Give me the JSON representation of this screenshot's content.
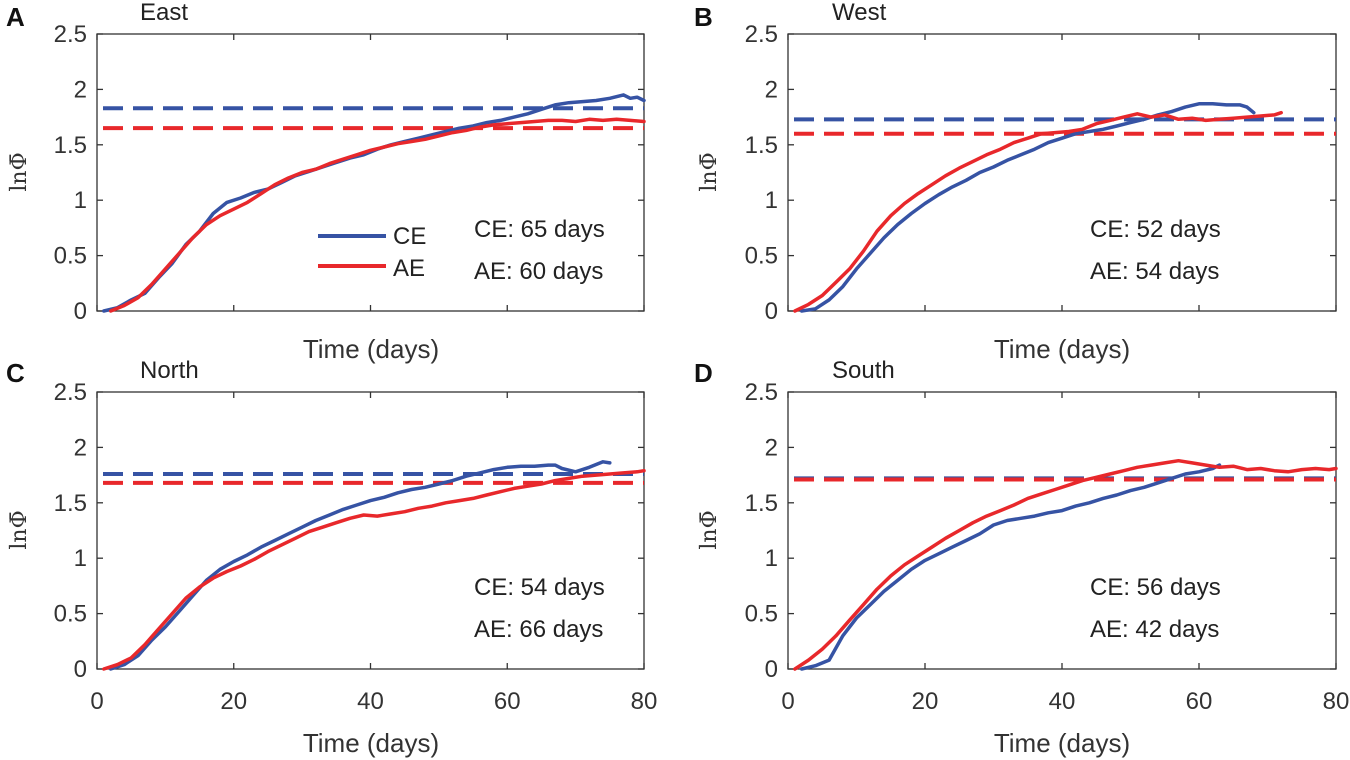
{
  "chart_data": [
    {
      "type": "line",
      "panel_label": "A",
      "title": "East",
      "xlabel": "Time (days)",
      "ylabel": "lnΦ̄",
      "xlim": [
        0,
        80
      ],
      "ylim": [
        0,
        2.5
      ],
      "xticks": [
        "0",
        "20",
        "40",
        "60",
        "80"
      ],
      "yticks": [
        "0",
        "0.5",
        "1",
        "1.5",
        "2",
        "2.5"
      ],
      "show_xtick_labels": false,
      "legend": [
        "CE",
        "AE"
      ],
      "annotations": [
        "CE: 65 days",
        "AE: 60 days"
      ],
      "series": [
        {
          "name": "CE",
          "color": "#3653a4",
          "x": [
            1,
            3,
            5,
            7,
            9,
            11,
            13,
            15,
            17,
            19,
            21,
            23,
            25,
            27,
            29,
            31,
            33,
            35,
            37,
            39,
            41,
            43,
            45,
            47,
            49,
            51,
            53,
            55,
            57,
            59,
            61,
            63,
            65,
            67,
            69,
            71,
            73,
            75,
            77,
            78,
            79,
            80
          ],
          "y": [
            0,
            0.03,
            0.1,
            0.16,
            0.3,
            0.43,
            0.6,
            0.72,
            0.88,
            0.98,
            1.02,
            1.07,
            1.1,
            1.16,
            1.22,
            1.26,
            1.3,
            1.34,
            1.38,
            1.41,
            1.46,
            1.5,
            1.53,
            1.56,
            1.59,
            1.62,
            1.65,
            1.67,
            1.7,
            1.72,
            1.75,
            1.78,
            1.82,
            1.86,
            1.88,
            1.89,
            1.9,
            1.92,
            1.95,
            1.92,
            1.93,
            1.9
          ]
        },
        {
          "name": "AE",
          "color": "#e8282b",
          "x": [
            2,
            4,
            6,
            8,
            10,
            12,
            14,
            16,
            18,
            20,
            22,
            24,
            26,
            28,
            30,
            32,
            34,
            36,
            38,
            40,
            42,
            44,
            46,
            48,
            50,
            52,
            54,
            56,
            58,
            60,
            62,
            64,
            66,
            68,
            70,
            72,
            74,
            76,
            78,
            80
          ],
          "y": [
            0,
            0.05,
            0.12,
            0.24,
            0.38,
            0.52,
            0.66,
            0.78,
            0.86,
            0.92,
            0.98,
            1.06,
            1.14,
            1.2,
            1.25,
            1.28,
            1.33,
            1.37,
            1.41,
            1.45,
            1.48,
            1.51,
            1.53,
            1.55,
            1.58,
            1.61,
            1.63,
            1.66,
            1.68,
            1.69,
            1.7,
            1.71,
            1.72,
            1.72,
            1.71,
            1.73,
            1.72,
            1.73,
            1.72,
            1.71
          ]
        }
      ],
      "reference_lines": [
        {
          "name": "CE plateau",
          "color": "#3653a4",
          "y": 1.83
        },
        {
          "name": "AE plateau",
          "color": "#e8282b",
          "y": 1.65
        }
      ]
    },
    {
      "type": "line",
      "panel_label": "B",
      "title": "West",
      "xlabel": "Time (days)",
      "ylabel": "lnΦ̄",
      "xlim": [
        0,
        80
      ],
      "ylim": [
        0,
        2.5
      ],
      "xticks": [
        "0",
        "20",
        "40",
        "60",
        "80"
      ],
      "yticks": [
        "0",
        "0.5",
        "1",
        "1.5",
        "2",
        "2.5"
      ],
      "show_xtick_labels": false,
      "legend": [],
      "annotations": [
        "CE: 52 days",
        "AE: 54 days"
      ],
      "series": [
        {
          "name": "CE",
          "color": "#3653a4",
          "x": [
            2,
            4,
            6,
            8,
            10,
            12,
            14,
            16,
            18,
            20,
            22,
            24,
            26,
            28,
            30,
            32,
            34,
            36,
            38,
            40,
            42,
            44,
            46,
            48,
            50,
            52,
            54,
            56,
            58,
            60,
            62,
            64,
            66,
            67,
            68
          ],
          "y": [
            0,
            0.02,
            0.1,
            0.22,
            0.38,
            0.52,
            0.66,
            0.78,
            0.88,
            0.97,
            1.05,
            1.12,
            1.18,
            1.25,
            1.3,
            1.36,
            1.41,
            1.46,
            1.52,
            1.56,
            1.6,
            1.62,
            1.64,
            1.67,
            1.7,
            1.73,
            1.77,
            1.8,
            1.84,
            1.87,
            1.87,
            1.86,
            1.86,
            1.84,
            1.79
          ]
        },
        {
          "name": "AE",
          "color": "#e8282b",
          "x": [
            1,
            3,
            5,
            7,
            9,
            11,
            13,
            15,
            17,
            19,
            21,
            23,
            25,
            27,
            29,
            31,
            33,
            35,
            37,
            39,
            41,
            43,
            45,
            47,
            49,
            51,
            53,
            55,
            57,
            59,
            61,
            63,
            65,
            67,
            69,
            71,
            72
          ],
          "y": [
            0,
            0.06,
            0.14,
            0.26,
            0.38,
            0.54,
            0.72,
            0.86,
            0.97,
            1.06,
            1.14,
            1.22,
            1.29,
            1.35,
            1.41,
            1.46,
            1.52,
            1.56,
            1.6,
            1.61,
            1.62,
            1.64,
            1.69,
            1.72,
            1.75,
            1.78,
            1.75,
            1.77,
            1.73,
            1.74,
            1.72,
            1.73,
            1.74,
            1.75,
            1.76,
            1.77,
            1.79
          ]
        }
      ],
      "reference_lines": [
        {
          "name": "CE plateau",
          "color": "#3653a4",
          "y": 1.73
        },
        {
          "name": "AE plateau",
          "color": "#e8282b",
          "y": 1.6
        }
      ]
    },
    {
      "type": "line",
      "panel_label": "C",
      "title": "North",
      "xlabel": "Time (days)",
      "ylabel": "lnΦ̄",
      "xlim": [
        0,
        80
      ],
      "ylim": [
        0,
        2.5
      ],
      "xticks": [
        "0",
        "20",
        "40",
        "60",
        "80"
      ],
      "yticks": [
        "0",
        "0.5",
        "1",
        "1.5",
        "2",
        "2.5"
      ],
      "show_xtick_labels": true,
      "legend": [],
      "annotations": [
        "CE: 54 days",
        "AE: 66 days"
      ],
      "series": [
        {
          "name": "CE",
          "color": "#3653a4",
          "x": [
            2,
            4,
            6,
            8,
            10,
            12,
            14,
            16,
            18,
            20,
            22,
            24,
            26,
            28,
            30,
            32,
            34,
            36,
            38,
            40,
            42,
            44,
            46,
            48,
            50,
            52,
            54,
            56,
            58,
            60,
            62,
            64,
            66,
            67,
            68,
            70,
            72,
            74,
            75
          ],
          "y": [
            0,
            0.04,
            0.12,
            0.26,
            0.38,
            0.52,
            0.66,
            0.8,
            0.9,
            0.97,
            1.03,
            1.1,
            1.16,
            1.22,
            1.28,
            1.34,
            1.39,
            1.44,
            1.48,
            1.52,
            1.55,
            1.59,
            1.62,
            1.64,
            1.67,
            1.7,
            1.74,
            1.77,
            1.8,
            1.82,
            1.83,
            1.83,
            1.84,
            1.84,
            1.81,
            1.78,
            1.82,
            1.87,
            1.86
          ]
        },
        {
          "name": "AE",
          "color": "#e8282b",
          "x": [
            1,
            3,
            5,
            7,
            9,
            11,
            13,
            15,
            17,
            19,
            21,
            23,
            25,
            27,
            29,
            31,
            33,
            35,
            37,
            39,
            41,
            43,
            45,
            47,
            49,
            51,
            53,
            55,
            57,
            59,
            61,
            63,
            65,
            67,
            69,
            71,
            73,
            75,
            77,
            79,
            80
          ],
          "y": [
            0,
            0.04,
            0.1,
            0.22,
            0.36,
            0.5,
            0.64,
            0.74,
            0.82,
            0.88,
            0.93,
            0.99,
            1.06,
            1.12,
            1.18,
            1.24,
            1.28,
            1.32,
            1.36,
            1.39,
            1.38,
            1.4,
            1.42,
            1.45,
            1.47,
            1.5,
            1.52,
            1.54,
            1.57,
            1.6,
            1.63,
            1.65,
            1.67,
            1.7,
            1.72,
            1.74,
            1.75,
            1.76,
            1.77,
            1.78,
            1.79
          ]
        }
      ],
      "reference_lines": [
        {
          "name": "CE plateau",
          "color": "#3653a4",
          "y": 1.76
        },
        {
          "name": "AE plateau",
          "color": "#e8282b",
          "y": 1.68
        }
      ]
    },
    {
      "type": "line",
      "panel_label": "D",
      "title": "South",
      "xlabel": "Time (days)",
      "ylabel": "lnΦ̄",
      "xlim": [
        0,
        80
      ],
      "ylim": [
        0,
        2.5
      ],
      "xticks": [
        "0",
        "20",
        "40",
        "60",
        "80"
      ],
      "yticks": [
        "0",
        "0.5",
        "1",
        "1.5",
        "2",
        "2.5"
      ],
      "show_xtick_labels": true,
      "legend": [],
      "annotations": [
        "CE: 56 days",
        "AE: 42 days"
      ],
      "series": [
        {
          "name": "CE",
          "color": "#3653a4",
          "x": [
            2,
            4,
            6,
            8,
            10,
            12,
            14,
            16,
            18,
            20,
            22,
            24,
            26,
            28,
            30,
            32,
            34,
            36,
            38,
            40,
            42,
            44,
            46,
            48,
            50,
            52,
            54,
            56,
            58,
            60,
            62,
            63
          ],
          "y": [
            0,
            0.03,
            0.08,
            0.3,
            0.46,
            0.58,
            0.7,
            0.8,
            0.9,
            0.98,
            1.04,
            1.1,
            1.16,
            1.22,
            1.3,
            1.34,
            1.36,
            1.38,
            1.41,
            1.43,
            1.47,
            1.5,
            1.54,
            1.57,
            1.61,
            1.64,
            1.68,
            1.72,
            1.76,
            1.78,
            1.81,
            1.84
          ]
        },
        {
          "name": "AE",
          "color": "#e8282b",
          "x": [
            1,
            3,
            5,
            7,
            9,
            11,
            13,
            15,
            17,
            19,
            21,
            23,
            25,
            27,
            29,
            31,
            33,
            35,
            37,
            39,
            41,
            43,
            45,
            47,
            49,
            51,
            53,
            55,
            57,
            59,
            61,
            63,
            65,
            67,
            69,
            71,
            73,
            75,
            77,
            79,
            80
          ],
          "y": [
            0,
            0.08,
            0.18,
            0.3,
            0.44,
            0.58,
            0.72,
            0.84,
            0.94,
            1.02,
            1.1,
            1.18,
            1.25,
            1.32,
            1.38,
            1.43,
            1.48,
            1.54,
            1.58,
            1.62,
            1.66,
            1.7,
            1.73,
            1.76,
            1.79,
            1.82,
            1.84,
            1.86,
            1.88,
            1.86,
            1.84,
            1.82,
            1.83,
            1.8,
            1.81,
            1.79,
            1.78,
            1.8,
            1.81,
            1.8,
            1.81
          ]
        }
      ],
      "reference_lines": [
        {
          "name": "CE plateau",
          "color": "#3653a4",
          "y": 1.72
        },
        {
          "name": "AE plateau",
          "color": "#e8282b",
          "y": 1.71
        }
      ]
    }
  ]
}
